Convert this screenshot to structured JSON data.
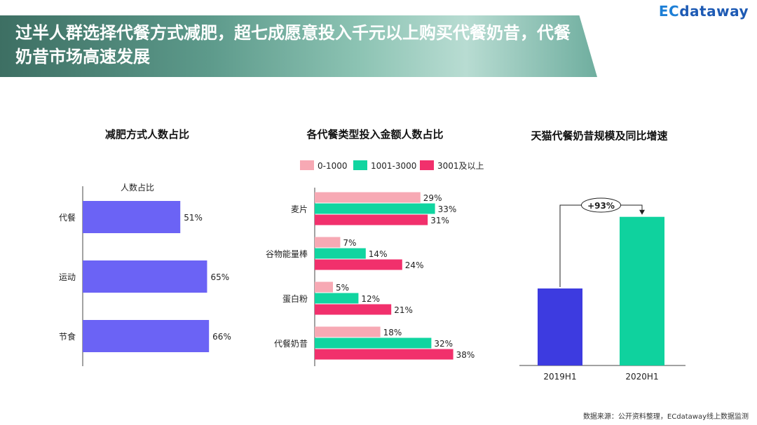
{
  "header": {
    "title": "过半人群选择代餐方式减肥，超七成愿意投入千元以上购买代餐奶昔，代餐奶昔市场高速发展",
    "logo_prefix": "EC",
    "logo_suffix": "dataway"
  },
  "source": "数据来源：公开资料整理，ECdataway线上数据监测",
  "colors": {
    "purple": "#6b63f5",
    "pink": "#f7a9b4",
    "teal": "#10d5a0",
    "magenta": "#f1306c",
    "blue": "#3d3be0",
    "green": "#0fd29e"
  },
  "chart_data": [
    {
      "type": "bar",
      "orientation": "horizontal",
      "title": "减肥方式人数占比",
      "categories": [
        "代餐",
        "运动",
        "节食"
      ],
      "series": [
        {
          "name": "人数占比",
          "values": [
            51,
            65,
            66
          ]
        }
      ],
      "value_labels": [
        "51%",
        "65%",
        "66%"
      ],
      "xlim": [
        0,
        100
      ]
    },
    {
      "type": "bar",
      "orientation": "horizontal",
      "title": "各代餐类型投入金额人数占比",
      "categories": [
        "麦片",
        "谷物能量棒",
        "蛋白粉",
        "代餐奶昔"
      ],
      "series": [
        {
          "name": "0-1000",
          "values": [
            29,
            7,
            5,
            18
          ],
          "labels": [
            "29%",
            "7%",
            "5%",
            "18%"
          ]
        },
        {
          "name": "1001-3000",
          "values": [
            33,
            14,
            12,
            32
          ],
          "labels": [
            "33%",
            "14%",
            "12%",
            "32%"
          ]
        },
        {
          "name": "3001及以上",
          "values": [
            31,
            24,
            21,
            38
          ],
          "labels": [
            "31%",
            "24%",
            "21%",
            "38%"
          ]
        }
      ],
      "legend_position": "top",
      "xlim": [
        0,
        50
      ]
    },
    {
      "type": "bar",
      "title": "天猫代餐奶昔规模及同比增速",
      "categories": [
        "2019H1",
        "2020H1"
      ],
      "values": [
        1.0,
        1.93
      ],
      "growth_label": "+93%",
      "ylim": [
        0,
        2.3
      ],
      "ticks_visible": false
    }
  ]
}
